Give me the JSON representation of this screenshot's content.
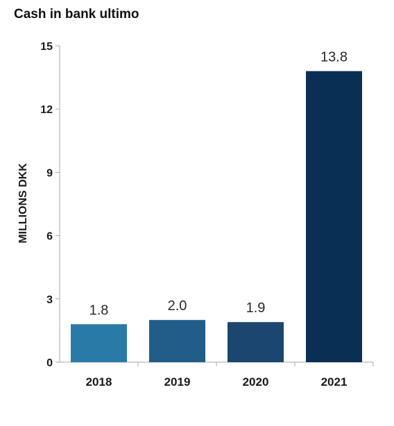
{
  "chart_data": {
    "type": "bar",
    "title": "Cash in bank ultimo",
    "ylabel": "MILLIONS DKK",
    "xlabel": "",
    "categories": [
      "2018",
      "2019",
      "2020",
      "2021"
    ],
    "values": [
      1.8,
      2.0,
      1.9,
      13.8
    ],
    "data_labels": [
      "1.8",
      "2.0",
      "1.9",
      "13.8"
    ],
    "ylim": [
      0,
      15
    ],
    "yticks": [
      0,
      3,
      6,
      9,
      12,
      15
    ],
    "grid": false,
    "legend": "none",
    "bar_colors": [
      "#2a7aa8",
      "#215d88",
      "#1b466f",
      "#0a2f55"
    ],
    "axis_color": "#b8b8b8"
  }
}
